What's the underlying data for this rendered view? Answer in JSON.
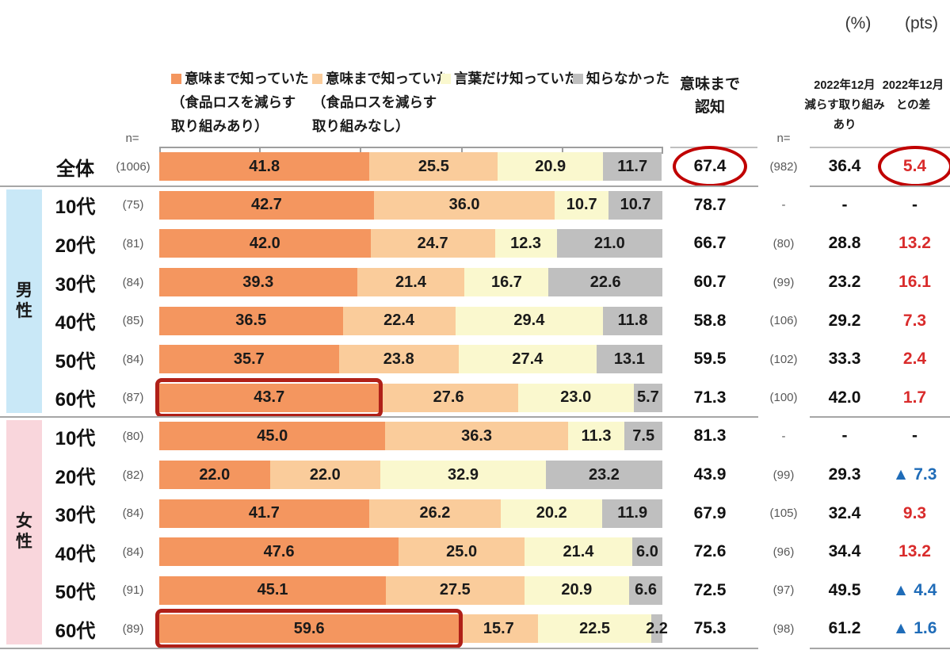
{
  "units": {
    "percent": "(%)",
    "pts": "(pts)"
  },
  "legend": {
    "items": [
      {
        "name": "meaning-known-with-action",
        "color": "#F4965F",
        "line1": "意味まで知っていた",
        "line2": "（食品ロスを減らす",
        "line3": "取り組みあり）"
      },
      {
        "name": "meaning-known-no-action",
        "color": "#FACC9B",
        "line1": "意味まで知っていた",
        "line2": "（食品ロスを減らす",
        "line3": "取り組みなし）"
      },
      {
        "name": "word-only-known",
        "color": "#FAF8CE",
        "line1": "言葉だけ知っていた",
        "line2": "",
        "line3": ""
      },
      {
        "name": "did-not-know",
        "color": "#BFBFBF",
        "line1": "知らなかった",
        "line2": "",
        "line3": ""
      }
    ]
  },
  "columns": {
    "n_label_left": "n=",
    "n_label_right": "n=",
    "ninchi_line1": "意味まで",
    "ninchi_line2": "認知",
    "dec_line1": "2022年12月",
    "dec_line2": "減らす取り組み",
    "dec_line3": "あり",
    "diff_line1": "2022年12月",
    "diff_line2": "との差"
  },
  "chart_data": {
    "type": "bar",
    "stacked": true,
    "orientation": "horizontal",
    "unit": "%",
    "xlim": [
      0,
      100
    ],
    "axis_ticks": [
      0,
      20,
      40,
      60,
      80,
      100
    ],
    "series_labels": [
      "意味まで知っていた（食品ロスを減らす取り組みあり）",
      "意味まで知っていた（食品ロスを減らす取り組みなし）",
      "言葉だけ知っていた",
      "知らなかった"
    ],
    "series_colors": [
      "#F4965F",
      "#FACC9B",
      "#FAF8CE",
      "#BFBFBF"
    ],
    "groups": [
      {
        "label": "男\n性",
        "color": "#C9E8F7",
        "start_row": 1,
        "row_count": 6
      },
      {
        "label": "女\n性",
        "color": "#F9D6DC",
        "start_row": 7,
        "row_count": 6
      }
    ],
    "rows": [
      {
        "label": "全体",
        "n": "(1006)",
        "values": [
          41.8,
          25.5,
          20.9,
          11.7
        ],
        "awareness": "67.4",
        "n_dec": "(982)",
        "dec_value": "36.4",
        "diff": "5.4",
        "diff_color": "red",
        "circle_awareness": true,
        "circle_diff": true
      },
      {
        "label": "10代",
        "n": "(75)",
        "values": [
          42.7,
          36.0,
          10.7,
          10.7
        ],
        "awareness": "78.7",
        "n_dec": "-",
        "dec_value": "-",
        "diff": "-",
        "diff_color": "none"
      },
      {
        "label": "20代",
        "n": "(81)",
        "values": [
          42.0,
          24.7,
          12.3,
          21.0
        ],
        "awareness": "66.7",
        "n_dec": "(80)",
        "dec_value": "28.8",
        "diff": "13.2",
        "diff_color": "red"
      },
      {
        "label": "30代",
        "n": "(84)",
        "values": [
          39.3,
          21.4,
          16.7,
          22.6
        ],
        "awareness": "60.7",
        "n_dec": "(99)",
        "dec_value": "23.2",
        "diff": "16.1",
        "diff_color": "red"
      },
      {
        "label": "40代",
        "n": "(85)",
        "values": [
          36.5,
          22.4,
          29.4,
          11.8
        ],
        "awareness": "58.8",
        "n_dec": "(106)",
        "dec_value": "29.2",
        "diff": "7.3",
        "diff_color": "red"
      },
      {
        "label": "50代",
        "n": "(84)",
        "values": [
          35.7,
          23.8,
          27.4,
          13.1
        ],
        "awareness": "59.5",
        "n_dec": "(102)",
        "dec_value": "33.3",
        "diff": "2.4",
        "diff_color": "red"
      },
      {
        "label": "60代",
        "n": "(87)",
        "values": [
          43.7,
          27.6,
          23.0,
          5.7
        ],
        "awareness": "71.3",
        "n_dec": "(100)",
        "dec_value": "42.0",
        "diff": "1.7",
        "diff_color": "red",
        "highlight_first_segment": true
      },
      {
        "label": "10代",
        "n": "(80)",
        "values": [
          45.0,
          36.3,
          11.3,
          7.5
        ],
        "awareness": "81.3",
        "n_dec": "-",
        "dec_value": "-",
        "diff": "-",
        "diff_color": "none"
      },
      {
        "label": "20代",
        "n": "(82)",
        "values": [
          22.0,
          22.0,
          32.9,
          23.2
        ],
        "awareness": "43.9",
        "n_dec": "(99)",
        "dec_value": "29.3",
        "diff": "▲ 7.3",
        "diff_color": "blue"
      },
      {
        "label": "30代",
        "n": "(84)",
        "values": [
          41.7,
          26.2,
          20.2,
          11.9
        ],
        "awareness": "67.9",
        "n_dec": "(105)",
        "dec_value": "32.4",
        "diff": "9.3",
        "diff_color": "red"
      },
      {
        "label": "40代",
        "n": "(84)",
        "values": [
          47.6,
          25.0,
          21.4,
          6.0
        ],
        "awareness": "72.6",
        "n_dec": "(96)",
        "dec_value": "34.4",
        "diff": "13.2",
        "diff_color": "red"
      },
      {
        "label": "50代",
        "n": "(91)",
        "values": [
          45.1,
          27.5,
          20.9,
          6.6
        ],
        "awareness": "72.5",
        "n_dec": "(97)",
        "dec_value": "49.5",
        "diff": "▲ 4.4",
        "diff_color": "blue"
      },
      {
        "label": "60代",
        "n": "(89)",
        "values": [
          59.6,
          15.7,
          22.5,
          2.2
        ],
        "awareness": "75.3",
        "n_dec": "(98)",
        "dec_value": "61.2",
        "diff": "▲ 1.6",
        "diff_color": "blue",
        "highlight_first_segment": true
      }
    ]
  }
}
